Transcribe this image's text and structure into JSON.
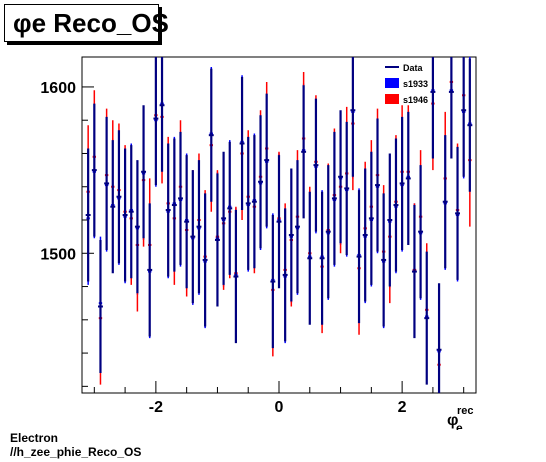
{
  "title": "φe Reco_OS",
  "footer": {
    "line1": "Electron",
    "line2": "//h_zee_phie_Reco_OS"
  },
  "chart_data": {
    "type": "scatter",
    "xlabel": "φe rec",
    "xlim": [
      -3.2,
      3.2
    ],
    "ylim": [
      1416,
      1618
    ],
    "xticks": [
      -2,
      0,
      2
    ],
    "xtick_labels": [
      "-2",
      "0",
      "2"
    ],
    "yticks": [
      1500,
      1600
    ],
    "ytick_labels": [
      "1500",
      "1600"
    ],
    "legend": {
      "placement": "top-right",
      "entries": [
        "Data",
        "s1933",
        "s1946"
      ]
    },
    "colors": {
      "data": "#000080",
      "s1933": "#0000ff",
      "s1946": "#ff0000"
    },
    "bin_width": 0.1,
    "y_error": 40,
    "series": [
      {
        "name": "s1933",
        "x": [
          -3.1,
          -3.0,
          -2.9,
          -2.8,
          -2.7,
          -2.6,
          -2.5,
          -2.4,
          -2.3,
          -2.2,
          -2.1,
          -2.0,
          -1.9,
          -1.8,
          -1.7,
          -1.6,
          -1.5,
          -1.4,
          -1.3,
          -1.2,
          -1.1,
          -1.0,
          -0.9,
          -0.8,
          -0.7,
          -0.6,
          -0.5,
          -0.4,
          -0.3,
          -0.2,
          -0.1,
          0.0,
          0.1,
          0.2,
          0.3,
          0.4,
          0.5,
          0.6,
          0.7,
          0.8,
          0.9,
          1.0,
          1.1,
          1.2,
          1.3,
          1.4,
          1.5,
          1.6,
          1.7,
          1.8,
          1.9,
          2.0,
          2.1,
          2.2,
          2.3,
          2.4,
          2.5,
          2.6,
          2.7,
          2.8,
          2.9,
          3.0,
          3.1
        ],
        "y": [
          1521,
          1549,
          1470,
          1541,
          1529,
          1533,
          1522,
          1526,
          1515,
          1548,
          1489,
          1580,
          1590,
          1525,
          1530,
          1532,
          1520,
          1509,
          1515,
          1495,
          1572,
          1509,
          1520,
          1528,
          1487,
          1567,
          1529,
          1532,
          1542,
          1555,
          1484,
          1520,
          1486,
          1510,
          1515,
          1562,
          1498,
          1552,
          1498,
          1512,
          1532,
          1545,
          1538,
          1585,
          1499,
          1510,
          1520,
          1540,
          1495,
          1519,
          1528,
          1541,
          1546,
          1490,
          1512,
          1462,
          1598,
          1441,
          1530,
          1598,
          1523,
          1585,
          1578
        ]
      },
      {
        "name": "s1946",
        "x": [
          -3.1,
          -3.0,
          -2.9,
          -2.8,
          -2.7,
          -2.6,
          -2.5,
          -2.4,
          -2.3,
          -2.2,
          -2.1,
          -2.0,
          -1.9,
          -1.8,
          -1.7,
          -1.6,
          -1.5,
          -1.4,
          -1.3,
          -1.2,
          -1.1,
          -1.0,
          -0.9,
          -0.8,
          -0.7,
          -0.6,
          -0.5,
          -0.4,
          -0.3,
          -0.2,
          -0.1,
          0.0,
          0.1,
          0.2,
          0.3,
          0.4,
          0.5,
          0.6,
          0.7,
          0.8,
          0.9,
          1.0,
          1.1,
          1.2,
          1.3,
          1.4,
          1.5,
          1.6,
          1.7,
          1.8,
          1.9,
          2.0,
          2.1,
          2.2,
          2.3,
          2.4,
          2.5,
          2.6,
          2.7,
          2.8,
          2.9,
          3.0,
          3.1
        ],
        "y": [
          1537,
          1558,
          1461,
          1547,
          1540,
          1538,
          1525,
          1521,
          1505,
          1544,
          1505,
          1583,
          1582,
          1530,
          1521,
          1540,
          1514,
          1510,
          1520,
          1498,
          1565,
          1510,
          1518,
          1525,
          1488,
          1560,
          1534,
          1528,
          1546,
          1563,
          1478,
          1521,
          1490,
          1508,
          1522,
          1569,
          1500,
          1555,
          1492,
          1514,
          1535,
          1540,
          1548,
          1578,
          1491,
          1515,
          1528,
          1547,
          1501,
          1510,
          1531,
          1549,
          1549,
          1490,
          1522,
          1466,
          1590,
          1433,
          1545,
          1603,
          1526,
          1595,
          1556
        ]
      },
      {
        "name": "Data",
        "x": [
          -3.1,
          -3.0,
          -2.9,
          -2.8,
          -2.7,
          -2.6,
          -2.5,
          -2.4,
          -2.3,
          -2.2,
          -2.1,
          -2.0,
          -1.9,
          -1.8,
          -1.7,
          -1.6,
          -1.5,
          -1.4,
          -1.3,
          -1.2,
          -1.1,
          -1.0,
          -0.9,
          -0.8,
          -0.7,
          -0.6,
          -0.5,
          -0.4,
          -0.3,
          -0.2,
          -0.1,
          0.0,
          0.1,
          0.2,
          0.3,
          0.4,
          0.5,
          0.6,
          0.7,
          0.8,
          0.9,
          1.0,
          1.1,
          1.2,
          1.3,
          1.4,
          1.5,
          1.6,
          1.7,
          1.8,
          1.9,
          2.0,
          2.1,
          2.2,
          2.3,
          2.4,
          2.5,
          2.6,
          2.7,
          2.8,
          2.9,
          3.0,
          3.1
        ],
        "y": [
          1523,
          1550,
          1468,
          1542,
          1528,
          1534,
          1523,
          1525,
          1516,
          1549,
          1490,
          1581,
          1589,
          1526,
          1529,
          1533,
          1519,
          1510,
          1516,
          1496,
          1571,
          1508,
          1521,
          1527,
          1486,
          1566,
          1530,
          1531,
          1543,
          1556,
          1483,
          1519,
          1487,
          1511,
          1516,
          1561,
          1497,
          1553,
          1497,
          1513,
          1533,
          1546,
          1539,
          1586,
          1498,
          1511,
          1521,
          1541,
          1496,
          1520,
          1529,
          1542,
          1545,
          1489,
          1513,
          1461,
          1597,
          1442,
          1531,
          1597,
          1524,
          1586,
          1577
        ]
      }
    ]
  }
}
